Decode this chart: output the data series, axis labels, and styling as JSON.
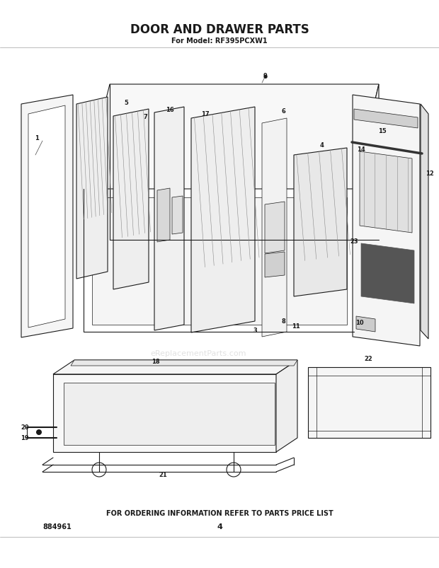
{
  "title": "DOOR AND DRAWER PARTS",
  "subtitle": "For Model: RF395PCXW1",
  "footer_text": "FOR ORDERING INFORMATION REFER TO PARTS PRICE LIST",
  "part_number": "884961",
  "page_number": "4",
  "bg_color": "#ffffff",
  "line_color": "#1a1a1a",
  "watermark": "eReplacementParts.com",
  "figsize": [
    6.2,
    8.04
  ],
  "dpi": 100
}
